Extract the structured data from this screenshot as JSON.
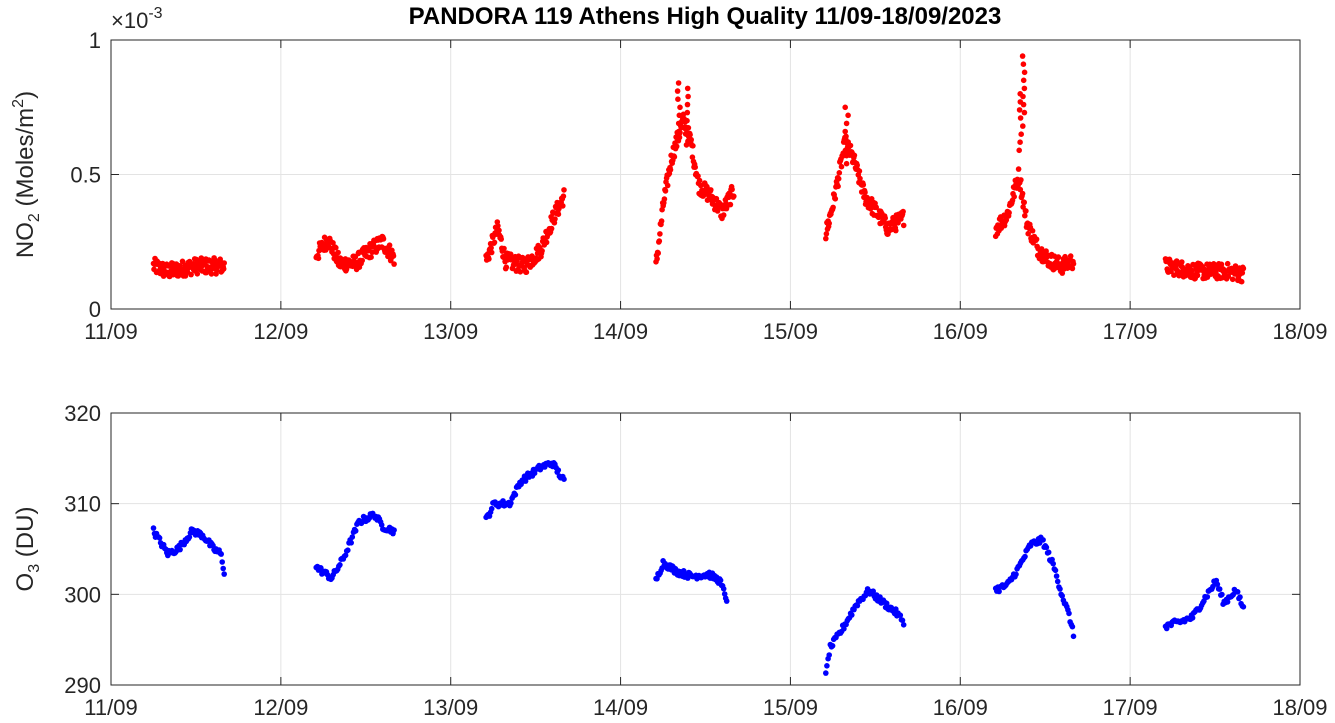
{
  "chart_data": [
    {
      "type": "scatter",
      "title": "PANDORA 119 Athens High Quality 11/09-18/09/2023",
      "ylabel_main": "NO",
      "ylabel_sub": "2",
      "ylabel_rest": " (Moles/m",
      "ylabel_sup": "2",
      "ylabel_end": ")",
      "exponent_prefix": "×10",
      "exponent_power": "-3",
      "xlim": [
        "11/09",
        "18/09"
      ],
      "x_ticks": [
        "11/09",
        "12/09",
        "13/09",
        "14/09",
        "15/09",
        "16/09",
        "17/09",
        "18/09"
      ],
      "ylim": [
        0,
        1
      ],
      "y_ticks": [
        "0",
        "0.5",
        "1"
      ],
      "grid": true,
      "color": "#ff0000",
      "daily_segments": [
        {
          "day": "11/09",
          "start_hour": 6,
          "end_hour": 16,
          "shape": [
            [
              0,
              0.16
            ],
            [
              0.2,
              0.14
            ],
            [
              0.4,
              0.15
            ],
            [
              0.6,
              0.16
            ],
            [
              0.8,
              0.16
            ],
            [
              1,
              0.16
            ]
          ]
        },
        {
          "day": "12/09",
          "start_hour": 5,
          "end_hour": 16,
          "shape": [
            [
              0,
              0.2
            ],
            [
              0.15,
              0.26
            ],
            [
              0.3,
              0.17
            ],
            [
              0.5,
              0.17
            ],
            [
              0.7,
              0.22
            ],
            [
              0.85,
              0.25
            ],
            [
              1,
              0.19
            ]
          ]
        },
        {
          "day": "13/09",
          "start_hour": 5,
          "end_hour": 16,
          "shape": [
            [
              0,
              0.18
            ],
            [
              0.15,
              0.3
            ],
            [
              0.25,
              0.18
            ],
            [
              0.5,
              0.16
            ],
            [
              0.7,
              0.22
            ],
            [
              0.85,
              0.33
            ],
            [
              1,
              0.42
            ]
          ]
        },
        {
          "day": "14/09",
          "start_hour": 5,
          "end_hour": 16,
          "shape": [
            [
              0,
              0.16
            ],
            [
              0.1,
              0.4
            ],
            [
              0.2,
              0.56
            ],
            [
              0.35,
              0.7
            ],
            [
              0.45,
              0.62
            ],
            [
              0.55,
              0.46
            ],
            [
              0.7,
              0.42
            ],
            [
              0.85,
              0.36
            ],
            [
              1,
              0.44
            ]
          ]
        },
        {
          "day": "15/09",
          "start_hour": 5,
          "end_hour": 16,
          "shape": [
            [
              0,
              0.28
            ],
            [
              0.1,
              0.4
            ],
            [
              0.25,
              0.62
            ],
            [
              0.35,
              0.56
            ],
            [
              0.5,
              0.42
            ],
            [
              0.65,
              0.36
            ],
            [
              0.8,
              0.3
            ],
            [
              1,
              0.34
            ]
          ]
        },
        {
          "day": "16/09",
          "start_hour": 5,
          "end_hour": 16,
          "shape": [
            [
              0,
              0.3
            ],
            [
              0.15,
              0.35
            ],
            [
              0.3,
              0.5
            ],
            [
              0.4,
              0.32
            ],
            [
              0.55,
              0.22
            ],
            [
              0.7,
              0.18
            ],
            [
              0.85,
              0.16
            ],
            [
              1,
              0.18
            ]
          ]
        },
        {
          "day": "17/09",
          "start_hour": 5,
          "end_hour": 16,
          "shape": [
            [
              0,
              0.16
            ],
            [
              0.2,
              0.15
            ],
            [
              0.4,
              0.14
            ],
            [
              0.6,
              0.14
            ],
            [
              0.8,
              0.14
            ],
            [
              1,
              0.13
            ]
          ]
        }
      ],
      "peaks": [
        {
          "day": "14/09",
          "hour": 8.2,
          "value": 0.84
        },
        {
          "day": "14/09",
          "hour": 9.4,
          "value": 0.82
        },
        {
          "day": "15/09",
          "hour": 7.9,
          "value": 0.75
        },
        {
          "day": "16/09",
          "hour": 8.9,
          "value": 0.94
        },
        {
          "day": "16/09",
          "hour": 8.6,
          "value": 0.8
        }
      ]
    },
    {
      "type": "scatter",
      "ylabel_main": "O",
      "ylabel_sub": "3",
      "ylabel_rest": " (DU)",
      "xlim": [
        "11/09",
        "18/09"
      ],
      "x_ticks": [
        "11/09",
        "12/09",
        "13/09",
        "14/09",
        "15/09",
        "16/09",
        "17/09",
        "18/09"
      ],
      "ylim": [
        290,
        320
      ],
      "y_ticks": [
        "290",
        "300",
        "310",
        "320"
      ],
      "grid": true,
      "color": "#0000ff",
      "daily_segments": [
        {
          "day": "11/09",
          "start_hour": 6,
          "end_hour": 16,
          "shape": [
            [
              0,
              307
            ],
            [
              0.2,
              304.5
            ],
            [
              0.35,
              305
            ],
            [
              0.55,
              307
            ],
            [
              0.7,
              306.5
            ],
            [
              0.85,
              305
            ],
            [
              0.95,
              304.5
            ],
            [
              1,
              302.5
            ]
          ]
        },
        {
          "day": "12/09",
          "start_hour": 5,
          "end_hour": 16,
          "shape": [
            [
              0,
              303
            ],
            [
              0.2,
              301.8
            ],
            [
              0.35,
              304
            ],
            [
              0.55,
              308
            ],
            [
              0.75,
              308.8
            ],
            [
              0.85,
              307.5
            ],
            [
              1,
              307
            ]
          ]
        },
        {
          "day": "13/09",
          "start_hour": 5,
          "end_hour": 16,
          "shape": [
            [
              0,
              308.2
            ],
            [
              0.1,
              310
            ],
            [
              0.3,
              310
            ],
            [
              0.45,
              312.5
            ],
            [
              0.7,
              314
            ],
            [
              0.85,
              314.5
            ],
            [
              1,
              312.5
            ]
          ]
        },
        {
          "day": "14/09",
          "start_hour": 5,
          "end_hour": 15,
          "shape": [
            [
              0,
              301.5
            ],
            [
              0.1,
              303.5
            ],
            [
              0.3,
              302.5
            ],
            [
              0.5,
              302
            ],
            [
              0.75,
              302.2
            ],
            [
              0.9,
              301.5
            ],
            [
              1,
              299.5
            ]
          ]
        },
        {
          "day": "15/09",
          "start_hour": 5,
          "end_hour": 16,
          "shape": [
            [
              0,
              291
            ],
            [
              0.05,
              294
            ],
            [
              0.2,
              296
            ],
            [
              0.4,
              299
            ],
            [
              0.55,
              300.4
            ],
            [
              0.75,
              299
            ],
            [
              0.9,
              298
            ],
            [
              1,
              297
            ]
          ]
        },
        {
          "day": "16/09",
          "start_hour": 5,
          "end_hour": 16,
          "shape": [
            [
              0,
              300.5
            ],
            [
              0.15,
              301
            ],
            [
              0.3,
              303
            ],
            [
              0.45,
              305.5
            ],
            [
              0.6,
              306
            ],
            [
              0.75,
              303
            ],
            [
              0.85,
              300
            ],
            [
              0.95,
              297.5
            ],
            [
              1,
              295.5
            ]
          ]
        },
        {
          "day": "17/09",
          "start_hour": 5,
          "end_hour": 16,
          "shape": [
            [
              0,
              296.5
            ],
            [
              0.2,
              297
            ],
            [
              0.35,
              297.5
            ],
            [
              0.5,
              299.5
            ],
            [
              0.65,
              301.5
            ],
            [
              0.75,
              299
            ],
            [
              0.9,
              300.5
            ],
            [
              1,
              298.5
            ]
          ]
        }
      ]
    }
  ]
}
